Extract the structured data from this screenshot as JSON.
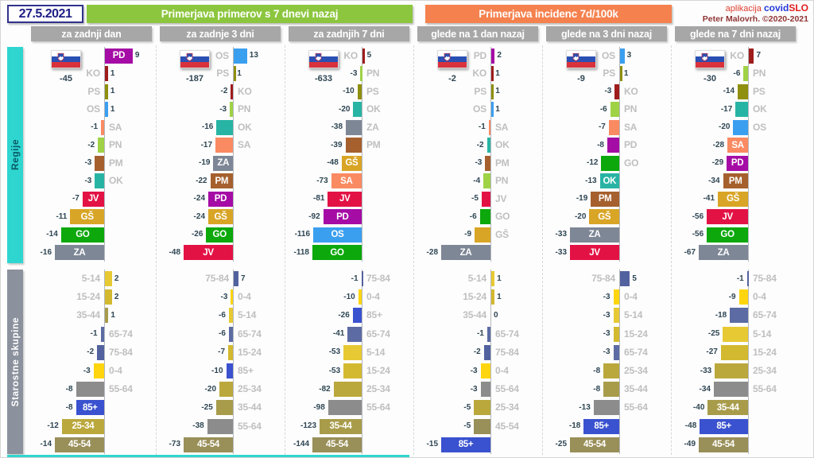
{
  "app": {
    "date": "27.5.2021",
    "credit_prefix": "aplikacija",
    "brand_covid": "covid",
    "brand_slo": "SLO",
    "credit_author": "Peter Malovrh. ©2020-2021"
  },
  "headers": {
    "left_group": "Primerjava primerov s 7 dnevi nazaj",
    "right_group": "Primerjava incidenc 7d/100k",
    "columns": [
      "za zadnji dan",
      "za zadnje 3 dni",
      "za zadnjih 7 dni",
      "glede na 1 dan nazaj",
      "glede na 3 dni nazaj",
      "glede na 7 dni nazaj"
    ]
  },
  "sections": {
    "regions_label": "Regije",
    "ages_label": "Starostne skupine"
  },
  "colors": {
    "header_left": "#8cc63e",
    "header_right": "#f5814e",
    "subheader": "#a7a7a7",
    "regions_strip": "#2fd6d0",
    "regions_strip_text": "#085a66",
    "ages_strip": "#8b919d",
    "ages_strip_text": "#ffffff",
    "value_text": "#2e4653",
    "code_text": "#bfbfbf",
    "regions": {
      "PD": "#a50ba5",
      "KO": "#9e1c1c",
      "PS": "#8f8f10",
      "OS": "#3b9ff0",
      "SA": "#fa8a62",
      "PN": "#9fd245",
      "PM": "#a5602e",
      "OK": "#28b4a4",
      "JV": "#e31245",
      "GŠ": "#d9a526",
      "GO": "#0ca80c",
      "ZA": "#7e8796"
    },
    "ages": {
      "0-4": "#ffd50f",
      "5-14": "#e7c934",
      "15-24": "#d3b92f",
      "25-34": "#bba83c",
      "35-44": "#a89c4b",
      "45-54": "#998f58",
      "55-64": "#8c8c8c",
      "65-74": "#5c6ba3",
      "75-84": "#52629f",
      "85+": "#3a52cf"
    }
  },
  "chart_data": [
    {
      "id": "regions-last-day",
      "type": "bar",
      "section": "regions",
      "column": "za zadnji dan",
      "palette": "regions",
      "total": -45,
      "rows": [
        {
          "label": "PD",
          "value": 9
        },
        {
          "label": "KO",
          "value": 1
        },
        {
          "label": "PS",
          "value": 1
        },
        {
          "label": "OS",
          "value": 1
        },
        {
          "label": "SA",
          "value": -1
        },
        {
          "label": "PN",
          "value": -2
        },
        {
          "label": "PM",
          "value": -3
        },
        {
          "label": "OK",
          "value": -3
        },
        {
          "label": "JV",
          "value": -7
        },
        {
          "label": "GŠ",
          "value": -11
        },
        {
          "label": "GO",
          "value": -14
        },
        {
          "label": "ZA",
          "value": -16
        }
      ]
    },
    {
      "id": "regions-last-3-days",
      "type": "bar",
      "section": "regions",
      "column": "za zadnje 3 dni",
      "palette": "regions",
      "total": -187,
      "rows": [
        {
          "label": "OS",
          "value": 13
        },
        {
          "label": "PS",
          "value": 1
        },
        {
          "label": "KO",
          "value": -2
        },
        {
          "label": "PN",
          "value": -3
        },
        {
          "label": "OK",
          "value": -16
        },
        {
          "label": "SA",
          "value": -17
        },
        {
          "label": "ZA",
          "value": -19
        },
        {
          "label": "PM",
          "value": -22
        },
        {
          "label": "PD",
          "value": -24
        },
        {
          "label": "GŠ",
          "value": -24
        },
        {
          "label": "GO",
          "value": -26
        },
        {
          "label": "JV",
          "value": -48
        }
      ]
    },
    {
      "id": "regions-last-7-days",
      "type": "bar",
      "section": "regions",
      "column": "za zadnjih 7 dni",
      "palette": "regions",
      "total": -633,
      "rows": [
        {
          "label": "KO",
          "value": 5
        },
        {
          "label": "PN",
          "value": -3
        },
        {
          "label": "PS",
          "value": -10
        },
        {
          "label": "OK",
          "value": -20
        },
        {
          "label": "ZA",
          "value": -38
        },
        {
          "label": "PM",
          "value": -39
        },
        {
          "label": "GŠ",
          "value": -48
        },
        {
          "label": "SA",
          "value": -73
        },
        {
          "label": "JV",
          "value": -81
        },
        {
          "label": "PD",
          "value": -92
        },
        {
          "label": "OS",
          "value": -116
        },
        {
          "label": "GO",
          "value": -118
        }
      ]
    },
    {
      "id": "incidence-vs-1-day",
      "type": "bar",
      "section": "regions",
      "column": "glede na 1 dan nazaj",
      "palette": "regions",
      "total": -2,
      "rows": [
        {
          "label": "PD",
          "value": 2
        },
        {
          "label": "KO",
          "value": 1
        },
        {
          "label": "PS",
          "value": 1
        },
        {
          "label": "OS",
          "value": 1
        },
        {
          "label": "SA",
          "value": -1
        },
        {
          "label": "OK",
          "value": -2
        },
        {
          "label": "PM",
          "value": -3
        },
        {
          "label": "PN",
          "value": -4
        },
        {
          "label": "JV",
          "value": -5
        },
        {
          "label": "GO",
          "value": -6
        },
        {
          "label": "GŠ",
          "value": -9
        },
        {
          "label": "ZA",
          "value": -28
        }
      ]
    },
    {
      "id": "incidence-vs-3-days",
      "type": "bar",
      "section": "regions",
      "column": "glede na 3 dni nazaj",
      "palette": "regions",
      "total": -9,
      "rows": [
        {
          "label": "OS",
          "value": 3
        },
        {
          "label": "PS",
          "value": 1
        },
        {
          "label": "KO",
          "value": -3
        },
        {
          "label": "PN",
          "value": -6
        },
        {
          "label": "SA",
          "value": -7
        },
        {
          "label": "PD",
          "value": -8
        },
        {
          "label": "GO",
          "value": -12
        },
        {
          "label": "OK",
          "value": -13
        },
        {
          "label": "PM",
          "value": -19
        },
        {
          "label": "GŠ",
          "value": -20
        },
        {
          "label": "ZA",
          "value": -33
        },
        {
          "label": "JV",
          "value": -33
        }
      ]
    },
    {
      "id": "incidence-vs-7-days",
      "type": "bar",
      "section": "regions",
      "column": "glede na 7 dni nazaj",
      "palette": "regions",
      "total": -30,
      "rows": [
        {
          "label": "KO",
          "value": 7
        },
        {
          "label": "PN",
          "value": -6
        },
        {
          "label": "PS",
          "value": -14
        },
        {
          "label": "OK",
          "value": -17
        },
        {
          "label": "OS",
          "value": -20
        },
        {
          "label": "SA",
          "value": -28
        },
        {
          "label": "PD",
          "value": -29
        },
        {
          "label": "PM",
          "value": -34
        },
        {
          "label": "GŠ",
          "value": -41
        },
        {
          "label": "JV",
          "value": -56
        },
        {
          "label": "GO",
          "value": -56
        },
        {
          "label": "ZA",
          "value": -67
        }
      ]
    },
    {
      "id": "ages-last-day",
      "type": "bar",
      "section": "ages",
      "column": "za zadnji dan",
      "palette": "ages",
      "rows": [
        {
          "label": "5-14",
          "value": 2
        },
        {
          "label": "15-24",
          "value": 2
        },
        {
          "label": "35-44",
          "value": 1
        },
        {
          "label": "65-74",
          "value": -1
        },
        {
          "label": "75-84",
          "value": -2
        },
        {
          "label": "0-4",
          "value": -3
        },
        {
          "label": "55-64",
          "value": -8
        },
        {
          "label": "85+",
          "value": -8
        },
        {
          "label": "25-34",
          "value": -12
        },
        {
          "label": "45-54",
          "value": -14
        }
      ]
    },
    {
      "id": "ages-last-3-days",
      "type": "bar",
      "section": "ages",
      "column": "za zadnje 3 dni",
      "palette": "ages",
      "rows": [
        {
          "label": "75-84",
          "value": 7
        },
        {
          "label": "0-4",
          "value": -3
        },
        {
          "label": "5-14",
          "value": -6
        },
        {
          "label": "65-74",
          "value": -6
        },
        {
          "label": "15-24",
          "value": -7
        },
        {
          "label": "85+",
          "value": -10
        },
        {
          "label": "25-34",
          "value": -20
        },
        {
          "label": "35-44",
          "value": -25
        },
        {
          "label": "55-64",
          "value": -38
        },
        {
          "label": "45-54",
          "value": -73
        }
      ]
    },
    {
      "id": "ages-last-7-days",
      "type": "bar",
      "section": "ages",
      "column": "za zadnjih 7 dni",
      "palette": "ages",
      "rows": [
        {
          "label": "75-84",
          "value": -1
        },
        {
          "label": "0-4",
          "value": -10
        },
        {
          "label": "85+",
          "value": -26
        },
        {
          "label": "65-74",
          "value": -41
        },
        {
          "label": "5-14",
          "value": -53
        },
        {
          "label": "15-24",
          "value": -53
        },
        {
          "label": "25-34",
          "value": -82
        },
        {
          "label": "55-64",
          "value": -98
        },
        {
          "label": "35-44",
          "value": -123
        },
        {
          "label": "45-54",
          "value": -144
        }
      ]
    },
    {
      "id": "ages-incidence-vs-1-day",
      "type": "bar",
      "section": "ages",
      "column": "glede na 1 dan nazaj",
      "palette": "ages",
      "rows": [
        {
          "label": "5-14",
          "value": 1
        },
        {
          "label": "15-24",
          "value": 1
        },
        {
          "label": "35-44",
          "value": 0
        },
        {
          "label": "65-74",
          "value": -1
        },
        {
          "label": "75-84",
          "value": -2
        },
        {
          "label": "0-4",
          "value": -3
        },
        {
          "label": "55-64",
          "value": -3
        },
        {
          "label": "25-34",
          "value": -5
        },
        {
          "label": "45-54",
          "value": -5
        },
        {
          "label": "85+",
          "value": -15
        }
      ]
    },
    {
      "id": "ages-incidence-vs-3-days",
      "type": "bar",
      "section": "ages",
      "column": "glede na 3 dni nazaj",
      "palette": "ages",
      "rows": [
        {
          "label": "75-84",
          "value": 5
        },
        {
          "label": "0-4",
          "value": -3
        },
        {
          "label": "5-14",
          "value": -3
        },
        {
          "label": "15-24",
          "value": -3
        },
        {
          "label": "65-74",
          "value": -3
        },
        {
          "label": "25-34",
          "value": -8
        },
        {
          "label": "35-44",
          "value": -8
        },
        {
          "label": "55-64",
          "value": -13
        },
        {
          "label": "85+",
          "value": -18
        },
        {
          "label": "45-54",
          "value": -25
        }
      ]
    },
    {
      "id": "ages-incidence-vs-7-days",
      "type": "bar",
      "section": "ages",
      "column": "glede na 7 dni nazaj",
      "palette": "ages",
      "rows": [
        {
          "label": "75-84",
          "value": -1
        },
        {
          "label": "0-4",
          "value": -9
        },
        {
          "label": "65-74",
          "value": -18
        },
        {
          "label": "5-14",
          "value": -25
        },
        {
          "label": "15-24",
          "value": -27
        },
        {
          "label": "25-34",
          "value": -33
        },
        {
          "label": "55-64",
          "value": -34
        },
        {
          "label": "35-44",
          "value": -40
        },
        {
          "label": "85+",
          "value": -48
        },
        {
          "label": "45-54",
          "value": -49
        }
      ]
    }
  ]
}
